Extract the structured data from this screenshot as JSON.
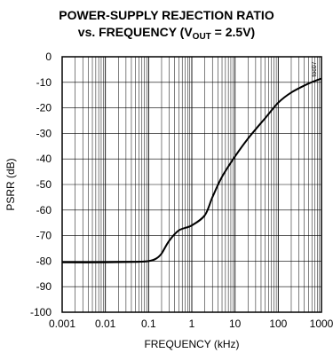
{
  "chart_data": {
    "type": "line",
    "title_line1": "POWER-SUPPLY REJECTION RATIO",
    "title_line2_prefix": "vs. FREQUENCY (V",
    "title_line2_sub": "OUT",
    "title_line2_suffix": " = 2.5V)",
    "xlabel": "FREQUENCY (kHz)",
    "ylabel": "PSRR (dB)",
    "x_scale": "log",
    "xlim": [
      0.001,
      1000
    ],
    "ylim": [
      -100,
      0
    ],
    "x_tick_labels": [
      "0.001",
      "0.01",
      "0.1",
      "1",
      "10",
      "100",
      "1000"
    ],
    "y_tick_labels": [
      "0",
      "-10",
      "-20",
      "-30",
      "-40",
      "-50",
      "-60",
      "-70",
      "-80",
      "-90",
      "-100"
    ],
    "grid": true,
    "figure_tag": "toc07",
    "series": [
      {
        "x": [
          0.001,
          0.01,
          0.05,
          0.1,
          0.15,
          0.2,
          0.3,
          0.5,
          1,
          2,
          3,
          5,
          10,
          20,
          50,
          100,
          200,
          500,
          1000
        ],
        "y": [
          -80.5,
          -80.5,
          -80.3,
          -80,
          -79,
          -77,
          -72,
          -68,
          -66,
          -62,
          -55,
          -47,
          -39,
          -32,
          -24,
          -18,
          -14,
          -10.5,
          -8.5
        ]
      }
    ]
  }
}
